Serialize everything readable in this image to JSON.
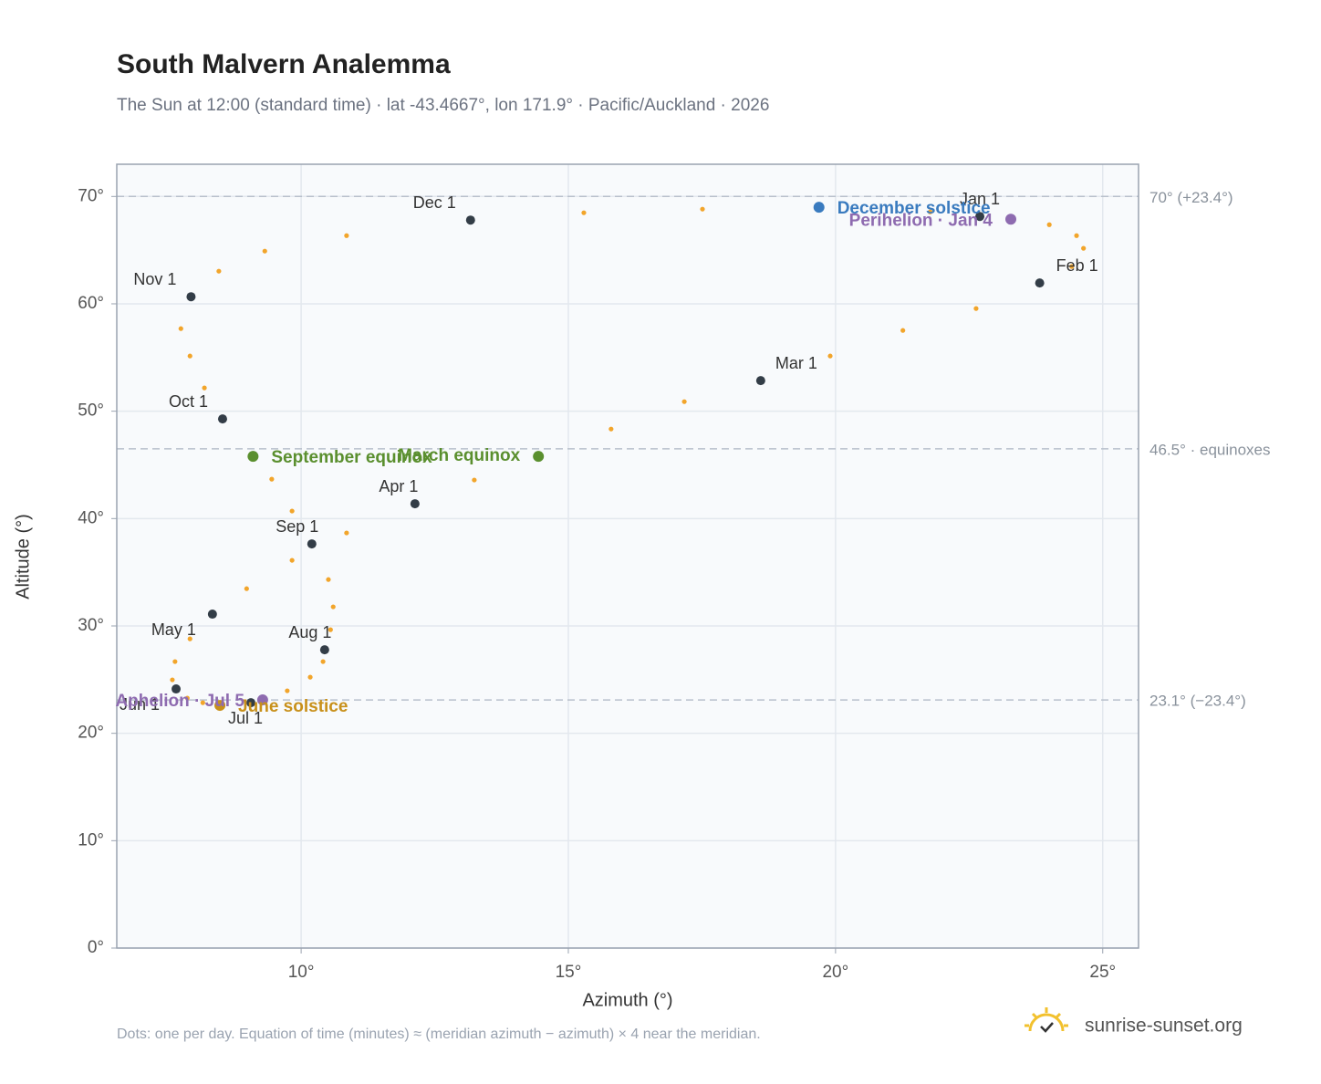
{
  "chart_data": {
    "type": "scatter",
    "title": "South Malvern Analemma",
    "subtitle": "The Sun at 12:00 (standard time) · lat -43.4667°, lon 171.9° · Pacific/Auckland · 2026",
    "x_label": "Azimuth (°)",
    "y_label": "Altitude (°)",
    "footnote": "Dots: one per day. Equation of time (minutes) ≈ (meridian azimuth − azimuth) × 4 near the meridian.",
    "brand": "sunrise-sunset.org",
    "xlim": [
      6.55,
      25.67
    ],
    "ylim": [
      0,
      73
    ],
    "xticks": [
      {
        "value": 10,
        "label": "10°"
      },
      {
        "value": 15,
        "label": "15°"
      },
      {
        "value": 20,
        "label": "20°"
      },
      {
        "value": 25,
        "label": "25°"
      }
    ],
    "yticks": [
      {
        "value": 0,
        "label": "0°"
      },
      {
        "value": 10,
        "label": "10°"
      },
      {
        "value": 20,
        "label": "20°"
      },
      {
        "value": 30,
        "label": "30°"
      },
      {
        "value": 40,
        "label": "40°"
      },
      {
        "value": 50,
        "label": "50°"
      },
      {
        "value": 60,
        "label": "60°"
      },
      {
        "value": 70,
        "label": "70°"
      }
    ],
    "grid": true,
    "reference_lines": [
      {
        "value": 70,
        "label": "70° (+23.4°)"
      },
      {
        "value": 46.5,
        "label": "46.5° · equinoxes"
      },
      {
        "value": 23.1,
        "label": "23.1° (−23.4°)"
      }
    ],
    "path": {
      "color": "#f2a52b",
      "x": [
        22.7,
        24.0,
        24.51,
        24.64,
        24.42,
        23.82,
        22.63,
        21.26,
        19.9,
        18.6,
        17.17,
        15.8,
        14.44,
        13.24,
        12.13,
        10.85,
        9.83,
        8.98,
        8.34,
        7.92,
        7.64,
        7.59,
        7.66,
        7.87,
        8.16,
        8.48,
        9.06,
        9.28,
        9.74,
        10.17,
        10.41,
        10.44,
        10.55,
        10.6,
        10.51,
        10.2,
        9.83,
        9.45,
        9.1,
        8.53,
        8.19,
        7.92,
        7.75,
        7.94,
        8.46,
        9.32,
        10.85,
        13.17,
        15.29,
        17.51,
        19.69,
        21.77
      ],
      "y": [
        68.14,
        67.37,
        66.35,
        65.17,
        63.47,
        61.94,
        59.56,
        57.52,
        55.14,
        52.85,
        50.89,
        48.34,
        45.79,
        43.59,
        41.38,
        38.66,
        36.11,
        33.47,
        31.1,
        28.8,
        26.68,
        24.98,
        24.13,
        23.28,
        22.85,
        22.6,
        22.85,
        23.11,
        23.96,
        25.23,
        26.68,
        27.78,
        29.65,
        31.78,
        34.32,
        37.64,
        40.7,
        43.67,
        45.79,
        49.28,
        52.17,
        55.14,
        57.69,
        60.66,
        63.04,
        64.91,
        66.35,
        67.8,
        68.48,
        68.82,
        68.99,
        68.56
      ]
    },
    "markers": {
      "color": "#333d47",
      "labels": [
        "Jan 1",
        "Feb 1",
        "Mar 1",
        "Apr 1",
        "May 1",
        "Jun 1",
        "Jul 1",
        "Aug 1",
        "Sep 1",
        "Oct 1",
        "Nov 1",
        "Dec 1"
      ],
      "x": [
        22.7,
        23.82,
        18.6,
        12.13,
        8.34,
        7.66,
        9.06,
        10.44,
        10.2,
        8.53,
        7.94,
        13.17
      ],
      "y": [
        68.14,
        61.94,
        52.85,
        41.38,
        31.1,
        24.13,
        22.85,
        27.78,
        37.64,
        49.28,
        60.66,
        67.8
      ]
    },
    "events": [
      {
        "label": "December solstice",
        "x": 19.69,
        "y": 68.99,
        "color": "#3a7bbf"
      },
      {
        "label": "Perihelion · Jan 4",
        "x": 23.28,
        "y": 67.88,
        "color": "#8e6bb0"
      },
      {
        "label": "March equinox",
        "x": 14.44,
        "y": 45.79,
        "color": "#5a8f2e"
      },
      {
        "label": "September equinox",
        "x": 9.1,
        "y": 45.79,
        "color": "#5a8f2e"
      },
      {
        "label": "June solstice",
        "x": 8.48,
        "y": 22.6,
        "color": "#c8901a"
      },
      {
        "label": "Aphelion · Jul 5",
        "x": 9.28,
        "y": 23.11,
        "color": "#8e6bb0"
      }
    ]
  }
}
